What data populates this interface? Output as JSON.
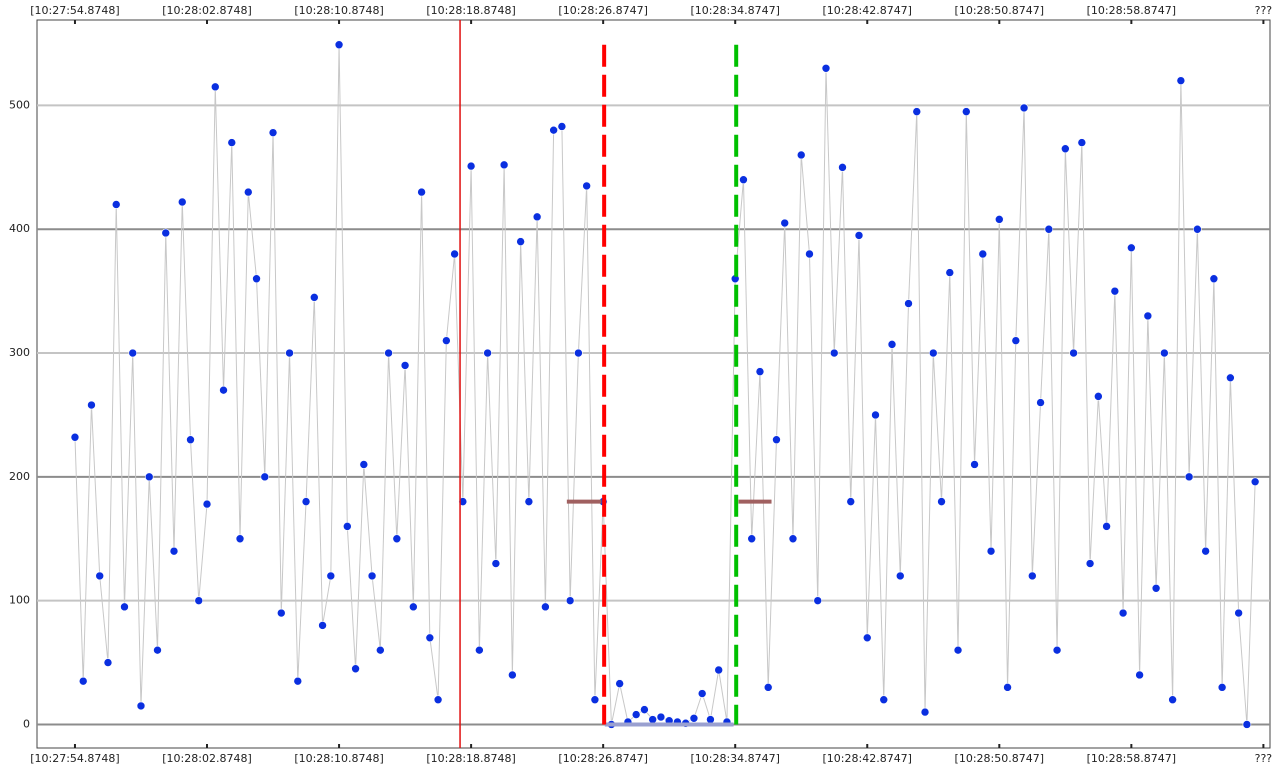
{
  "chart_data": {
    "type": "line",
    "x": [
      0,
      0.5,
      1,
      1.5,
      2,
      2.5,
      3,
      3.5,
      4,
      4.5,
      5,
      5.5,
      6,
      6.5,
      7,
      7.5,
      8,
      8.5,
      9,
      9.5,
      10,
      10.5,
      11,
      11.5,
      12,
      12.5,
      13,
      13.5,
      14,
      14.5,
      15,
      15.5,
      16,
      16.5,
      17,
      17.5,
      18,
      18.5,
      19,
      19.5,
      20,
      20.5,
      21,
      21.5,
      22,
      22.5,
      23,
      23.5,
      24,
      24.5,
      25,
      25.5,
      26,
      26.5,
      27,
      27.5,
      28,
      28.5,
      29,
      29.5,
      30,
      30.5,
      31,
      31.5,
      32,
      32.5,
      33,
      33.5,
      34,
      34.5,
      35,
      35.5,
      36,
      36.5,
      37,
      37.5,
      38,
      38.5,
      39,
      39.5,
      40,
      40.5,
      41,
      41.5,
      42,
      42.5,
      43,
      43.5,
      44,
      44.5,
      45,
      45.5,
      46,
      46.5,
      47,
      47.5,
      48,
      48.5,
      49,
      49.5,
      50,
      50.5,
      51,
      51.5,
      52,
      52.5,
      53,
      53.5,
      54,
      54.5,
      55,
      55.5,
      56,
      56.5,
      57,
      57.5,
      58,
      58.5,
      59,
      59.5,
      60,
      60.5,
      61,
      61.5,
      62,
      62.5,
      63,
      63.5,
      64,
      64.5,
      65,
      65.5,
      66,
      66.5,
      67,
      67.5,
      68,
      68.5,
      69,
      69.5,
      70,
      70.5,
      71,
      71.5
    ],
    "series": [
      {
        "color": "#0a2fe0",
        "line_color": "#c8c8c8",
        "values": [
          232,
          35,
          258,
          120,
          50,
          420,
          95,
          300,
          15,
          200,
          60,
          397,
          140,
          422,
          230,
          100,
          178,
          515,
          270,
          470,
          150,
          430,
          360,
          200,
          478,
          90,
          300,
          35,
          180,
          345,
          80,
          120,
          549,
          160,
          45,
          210,
          120,
          60,
          300,
          150,
          290,
          95,
          430,
          70,
          20,
          310,
          380,
          180,
          451,
          60,
          300,
          130,
          452,
          40,
          390,
          180,
          410,
          95,
          480,
          483,
          100,
          300,
          435,
          20,
          180,
          0,
          33,
          2,
          8,
          12,
          4,
          6,
          3,
          2,
          1,
          5,
          25,
          4,
          44,
          2,
          360,
          440,
          150,
          285,
          30,
          230,
          405,
          150,
          460,
          380,
          100,
          530,
          300,
          450,
          180,
          395,
          70,
          250,
          20,
          307,
          120,
          340,
          495,
          10,
          300,
          180,
          365,
          60,
          495,
          210,
          380,
          140,
          408,
          30,
          310,
          498,
          120,
          260,
          400,
          60,
          465,
          300,
          470,
          130,
          265,
          160,
          350,
          90,
          385,
          40,
          330,
          110,
          300,
          20,
          520,
          200,
          400,
          140,
          360,
          30,
          280,
          90,
          0,
          196
        ]
      }
    ],
    "xlim": [
      -2.3,
      72.4
    ],
    "ylim": [
      -19,
      569
    ],
    "xticks": [
      {
        "value": 0,
        "label": "[10:27:54.8748]"
      },
      {
        "value": 8,
        "label": "[10:28:02.8748]"
      },
      {
        "value": 16,
        "label": "[10:28:10.8748]"
      },
      {
        "value": 24,
        "label": "[10:28:18.8748]"
      },
      {
        "value": 32,
        "label": "[10:28:26.8747]"
      },
      {
        "value": 40,
        "label": "[10:28:34.8747]"
      },
      {
        "value": 48,
        "label": "[10:28:42.8747]"
      },
      {
        "value": 56,
        "label": "[10:28:50.8747]"
      },
      {
        "value": 64,
        "label": "[10:28:58.8747]"
      },
      {
        "value": 72,
        "label": "???"
      }
    ],
    "yticks": [
      0,
      100,
      200,
      300,
      400,
      500
    ],
    "grid_colors": [
      "#8c8c8c",
      "#c4c4c4"
    ],
    "vlines": [
      {
        "x": 23.33,
        "color": "#e01010",
        "style": "solid"
      },
      {
        "x": 32.06,
        "top": 549,
        "color": "#ff0000",
        "style": "dashed"
      },
      {
        "x": 40.06,
        "top": 549,
        "color": "#00c000",
        "style": "dashed"
      }
    ],
    "hsegments": [
      {
        "x": [
          29.8,
          31.9
        ],
        "y": 180,
        "color": "#a06060"
      },
      {
        "x": [
          40.2,
          42.2
        ],
        "y": 180,
        "color": "#a06060"
      },
      {
        "x": [
          32.1,
          39.9
        ],
        "y": 0,
        "color": "#9aa0d0"
      }
    ]
  }
}
